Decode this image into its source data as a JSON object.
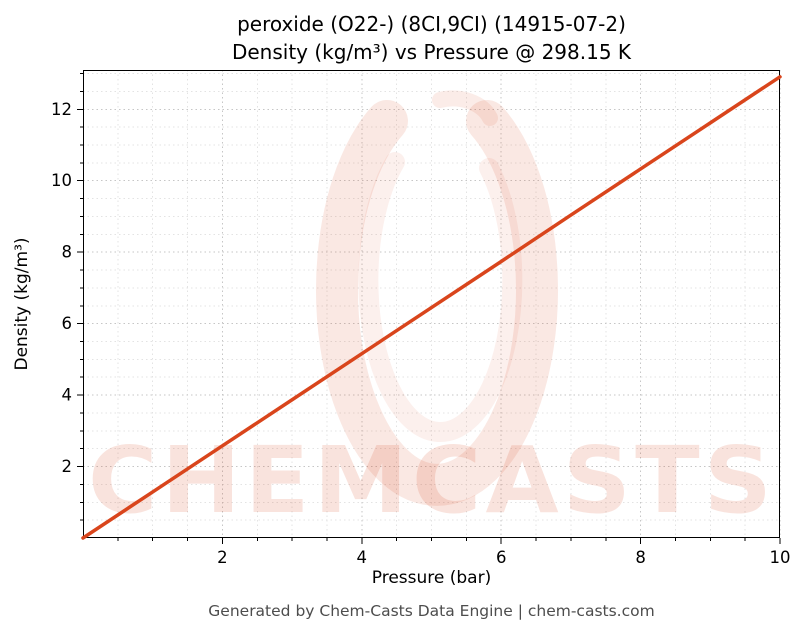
{
  "title": {
    "line1": "peroxide (O22-) (8CI,9CI) (14915-07-2)",
    "line2": "Density (kg/m³) vs Pressure @ 298.15 K"
  },
  "footer": "Generated by Chem-Casts Data Engine | chem-casts.com",
  "watermark": {
    "text": "CHEMCASTS",
    "color": "#d9451c"
  },
  "chart_data": {
    "type": "line",
    "title": "peroxide (O22-) (8CI,9CI) (14915-07-2) — Density (kg/m³) vs Pressure @ 298.15 K",
    "xlabel": "Pressure (bar)",
    "ylabel": "Density (kg/m³)",
    "xlim": [
      0,
      10
    ],
    "ylim": [
      0,
      13.1
    ],
    "xticks": [
      2,
      4,
      6,
      8,
      10
    ],
    "yticks": [
      2,
      4,
      6,
      8,
      10,
      12
    ],
    "minor_step_x": 0.5,
    "minor_step_y": 0.5,
    "grid": true,
    "legend": false,
    "line_color": "#d9451c",
    "series": [
      {
        "name": "Density vs Pressure @ 298.15 K",
        "x": [
          0,
          1,
          2,
          3,
          4,
          5,
          6,
          7,
          8,
          9,
          10
        ],
        "y": [
          0,
          1.29,
          2.58,
          3.87,
          5.16,
          6.45,
          7.74,
          9.04,
          10.33,
          11.62,
          12.91
        ]
      }
    ]
  }
}
